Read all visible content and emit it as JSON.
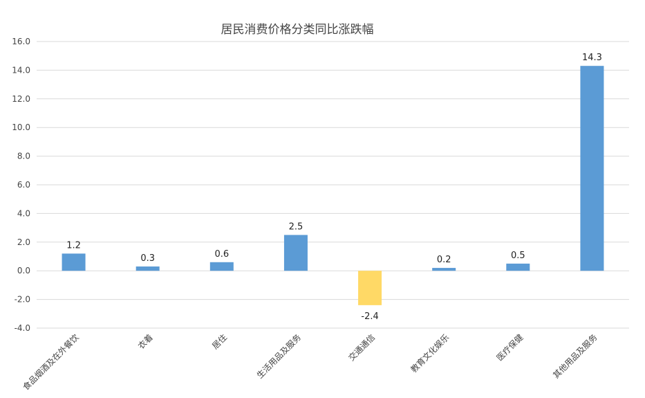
{
  "chart_data": {
    "type": "bar",
    "title": "居民消费价格分类同比涨跌幅",
    "xlabel": "",
    "ylabel": "",
    "categories": [
      "食品烟酒及在外餐饮",
      "衣着",
      "居住",
      "生活用品及服务",
      "交通通信",
      "教育文化娱乐",
      "医疗保健",
      "其他用品及服务"
    ],
    "values": [
      1.2,
      0.3,
      0.6,
      2.5,
      -2.4,
      0.2,
      0.5,
      14.3
    ],
    "ylim": [
      -4.0,
      16.0
    ],
    "yticks": [
      "16.0",
      "14.0",
      "12.0",
      "10.0",
      "8.0",
      "6.0",
      "4.0",
      "2.0",
      "0.0",
      "-2.0",
      "-4.0"
    ],
    "data_labels": [
      "1.2",
      "0.3",
      "0.6",
      "2.5",
      "-2.4",
      "0.2",
      "0.5",
      "14.3"
    ],
    "grid": true,
    "legend": "none",
    "colors": {
      "positive": "#5b9bd5",
      "negative": "#ffd966"
    }
  }
}
